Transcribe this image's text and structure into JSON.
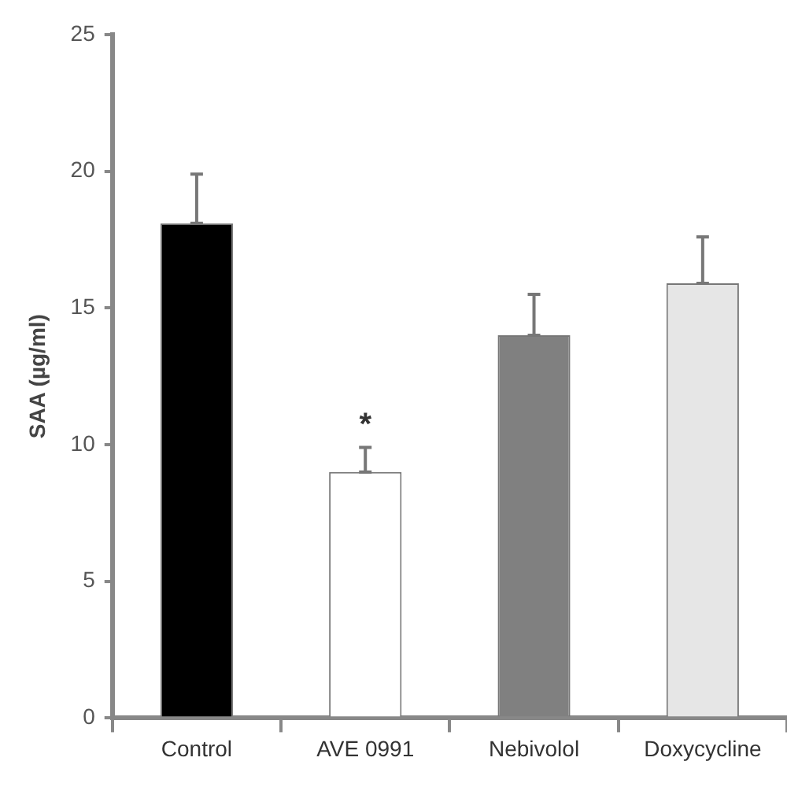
{
  "chart_data": {
    "type": "bar",
    "ylabel": "SAA (µg/ml)",
    "categories": [
      "Control",
      "AVE 0991",
      "Nebivolol",
      "Doxycycline"
    ],
    "values": [
      18.1,
      9.0,
      14.0,
      15.9
    ],
    "colors": [
      "#000000",
      "#ffffff",
      "#808080",
      "#e6e6e6"
    ],
    "errors": [
      [
        18.1,
        19.9
      ],
      [
        9.0,
        9.9
      ],
      [
        14.0,
        15.5
      ],
      [
        15.9,
        17.6
      ]
    ],
    "ylim": [
      0,
      25
    ],
    "yticks": [
      0,
      5,
      10,
      15,
      20,
      25
    ],
    "annotations": [
      {
        "text": "*",
        "x": "AVE 0991",
        "y": 9.0
      }
    ],
    "grid": false,
    "legend": false
  }
}
